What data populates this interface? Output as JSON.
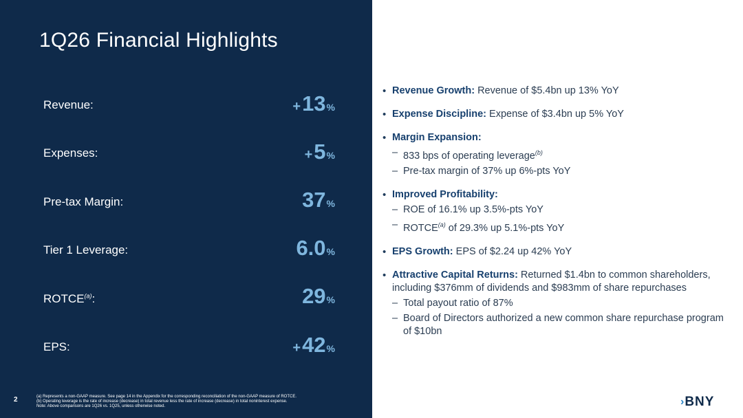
{
  "title": "1Q26 Financial Highlights",
  "metrics": [
    {
      "label": "Revenue:",
      "prefix": "+",
      "value": "13",
      "unit": "%"
    },
    {
      "label": "Expenses:",
      "prefix": "+",
      "value": "5",
      "unit": "%"
    },
    {
      "label": "Pre-tax Margin:",
      "prefix": "",
      "value": "37",
      "unit": "%"
    },
    {
      "label": "Tier 1 Leverage:",
      "prefix": "",
      "value": "6.0",
      "unit": "%"
    },
    {
      "label": "ROTCE",
      "label_note": "(a)",
      "label_suffix": ":",
      "prefix": "",
      "value": "29",
      "unit": "%"
    },
    {
      "label": "EPS:",
      "prefix": "+",
      "value": "42",
      "unit": "%"
    }
  ],
  "bullets": {
    "revenue": {
      "head": "Revenue Growth:",
      "text": " Revenue of $5.4bn up 13% YoY"
    },
    "expense": {
      "head": "Expense Discipline:",
      "text": " Expense of $3.4bn up 5% YoY"
    },
    "margin": {
      "head": "Margin Expansion:",
      "sub1": "833 bps of operating leverage",
      "sub1_note": "(b)",
      "sub2": "Pre-tax margin of 37% up 6%-pts YoY"
    },
    "profit": {
      "head": "Improved Profitability:",
      "sub1": "ROE of 16.1% up 3.5%-pts YoY",
      "sub2_pre": "ROTCE",
      "sub2_note": "(a)",
      "sub2": " of 29.3% up 5.1%-pts YoY"
    },
    "eps": {
      "head": "EPS Growth:",
      "text": " EPS of $2.24 up 42% YoY"
    },
    "capital": {
      "head": "Attractive Capital Returns:",
      "text": " Returned $1.4bn to common shareholders, including $376mm of dividends and $983mm of share repurchases",
      "sub1": "Total payout ratio of 87%",
      "sub2": "Board of Directors authorized a new common share repurchase program of $10bn"
    }
  },
  "bullet_char": "•",
  "dash_char": "–",
  "page_number": "2",
  "footnotes": [
    "(a) Represents a non-GAAP measure. See page 14 in the Appendix for the corresponding reconciliation of the non-GAAP measure of ROTCE.",
    "(b) Operating leverage is the rate of increase (decrease) in total revenue less the rate of increase (decrease) in total noninterest expense.",
    "Note: Above comparisons are 1Q26 vs. 1Q25, unless otherwise noted."
  ],
  "logo": {
    "mark": "›",
    "text": "BNY"
  },
  "colors": {
    "panel": "#0f2a4a",
    "accent": "#7fb6de",
    "heading": "#17406e"
  }
}
